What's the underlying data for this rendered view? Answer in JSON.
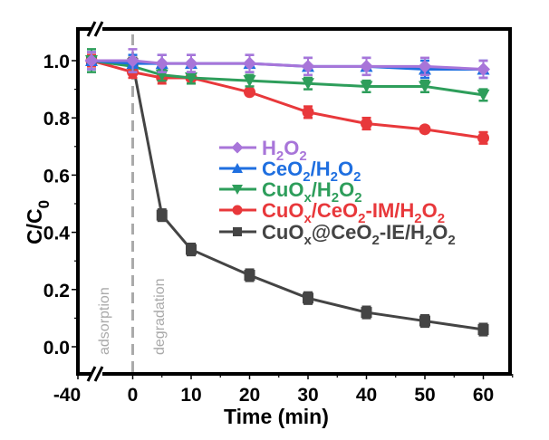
{
  "chart_data": {
    "type": "line",
    "title": "",
    "xlabel": "Time (min)",
    "ylabel_main": "C/C",
    "ylabel_sub": "0",
    "xlim": [
      -40,
      65
    ],
    "ylim": [
      -0.08,
      1.1
    ],
    "x_axis_break": true,
    "x_ticks": [
      -40,
      0,
      10,
      20,
      30,
      40,
      50,
      60
    ],
    "x_tick_labels": [
      "-40",
      "0",
      "10",
      "20",
      "30",
      "40",
      "50",
      "60"
    ],
    "y_ticks": [
      0.0,
      0.2,
      0.4,
      0.6,
      0.8,
      1.0
    ],
    "y_tick_labels": [
      "0.0",
      "0.2",
      "0.4",
      "0.6",
      "0.8",
      "1.0"
    ],
    "grid": false,
    "legend_position": "center",
    "annotations": [
      {
        "text": "adsorption",
        "x": -20
      },
      {
        "text": "degradation",
        "x": 3
      }
    ],
    "divider_x": 0,
    "x": [
      -40,
      0,
      5,
      10,
      20,
      30,
      40,
      50,
      60
    ],
    "series": [
      {
        "name": "H2O2",
        "label_parts": [
          [
            "H",
            ""
          ],
          [
            "2",
            "sub"
          ],
          [
            "O",
            ""
          ],
          [
            "2",
            "sub"
          ]
        ],
        "color": "#a875d9",
        "marker": "diamond",
        "values": [
          1.0,
          1.0,
          0.99,
          0.99,
          0.99,
          0.98,
          0.98,
          0.98,
          0.97
        ],
        "errors": [
          0.03,
          0.04,
          0.03,
          0.03,
          0.03,
          0.03,
          0.03,
          0.03,
          0.03
        ]
      },
      {
        "name": "CeO2/H2O2",
        "label_parts": [
          [
            "CeO",
            ""
          ],
          [
            "2",
            "sub"
          ],
          [
            "/H",
            ""
          ],
          [
            "2",
            "sub"
          ],
          [
            "O",
            ""
          ],
          [
            "2",
            "sub"
          ]
        ],
        "color": "#1f6fe0",
        "marker": "triangle-up",
        "values": [
          1.0,
          0.99,
          0.99,
          0.99,
          0.99,
          0.98,
          0.98,
          0.97,
          0.97
        ],
        "errors": [
          0.03,
          0.03,
          0.03,
          0.03,
          0.03,
          0.03,
          0.03,
          0.03,
          0.03
        ]
      },
      {
        "name": "CuOx/H2O2",
        "label_parts": [
          [
            "CuO",
            ""
          ],
          [
            "x",
            "sub"
          ],
          [
            "/H",
            ""
          ],
          [
            "2",
            "sub"
          ],
          [
            "O",
            ""
          ],
          [
            "2",
            "sub"
          ]
        ],
        "color": "#2e9e5b",
        "marker": "triangle-down",
        "values": [
          1.0,
          0.98,
          0.95,
          0.94,
          0.93,
          0.92,
          0.91,
          0.91,
          0.88
        ],
        "errors": [
          0.04,
          0.02,
          0.02,
          0.02,
          0.02,
          0.02,
          0.02,
          0.02,
          0.02
        ]
      },
      {
        "name": "CuOx/CeO2-IM/H2O2",
        "label_parts": [
          [
            "CuO",
            ""
          ],
          [
            "x",
            "sub"
          ],
          [
            "/CeO",
            ""
          ],
          [
            "2",
            "sub"
          ],
          [
            "-IM/H",
            ""
          ],
          [
            "2",
            "sub"
          ],
          [
            "O",
            ""
          ],
          [
            "2",
            "sub"
          ]
        ],
        "color": "#e8383b",
        "marker": "circle",
        "values": [
          1.0,
          0.96,
          0.94,
          0.94,
          0.89,
          0.82,
          0.78,
          0.76,
          0.73
        ],
        "errors": [
          0.02,
          0.02,
          0.02,
          0.02,
          0.01,
          0.02,
          0.02,
          0.01,
          0.02
        ]
      },
      {
        "name": "CuOx@CeO2-IE/H2O2",
        "label_parts": [
          [
            "CuO",
            ""
          ],
          [
            "x",
            "sub"
          ],
          [
            "@CeO",
            ""
          ],
          [
            "2",
            "sub"
          ],
          [
            "-IE/H",
            ""
          ],
          [
            "2",
            "sub"
          ],
          [
            "O",
            ""
          ],
          [
            "2",
            "sub"
          ]
        ],
        "color": "#444444",
        "marker": "square",
        "values": [
          1.0,
          0.99,
          0.46,
          0.34,
          0.25,
          0.17,
          0.12,
          0.09,
          0.06
        ],
        "errors": [
          0.02,
          0.02,
          0.02,
          0.02,
          0.02,
          0.02,
          0.02,
          0.02,
          0.02
        ]
      }
    ]
  }
}
